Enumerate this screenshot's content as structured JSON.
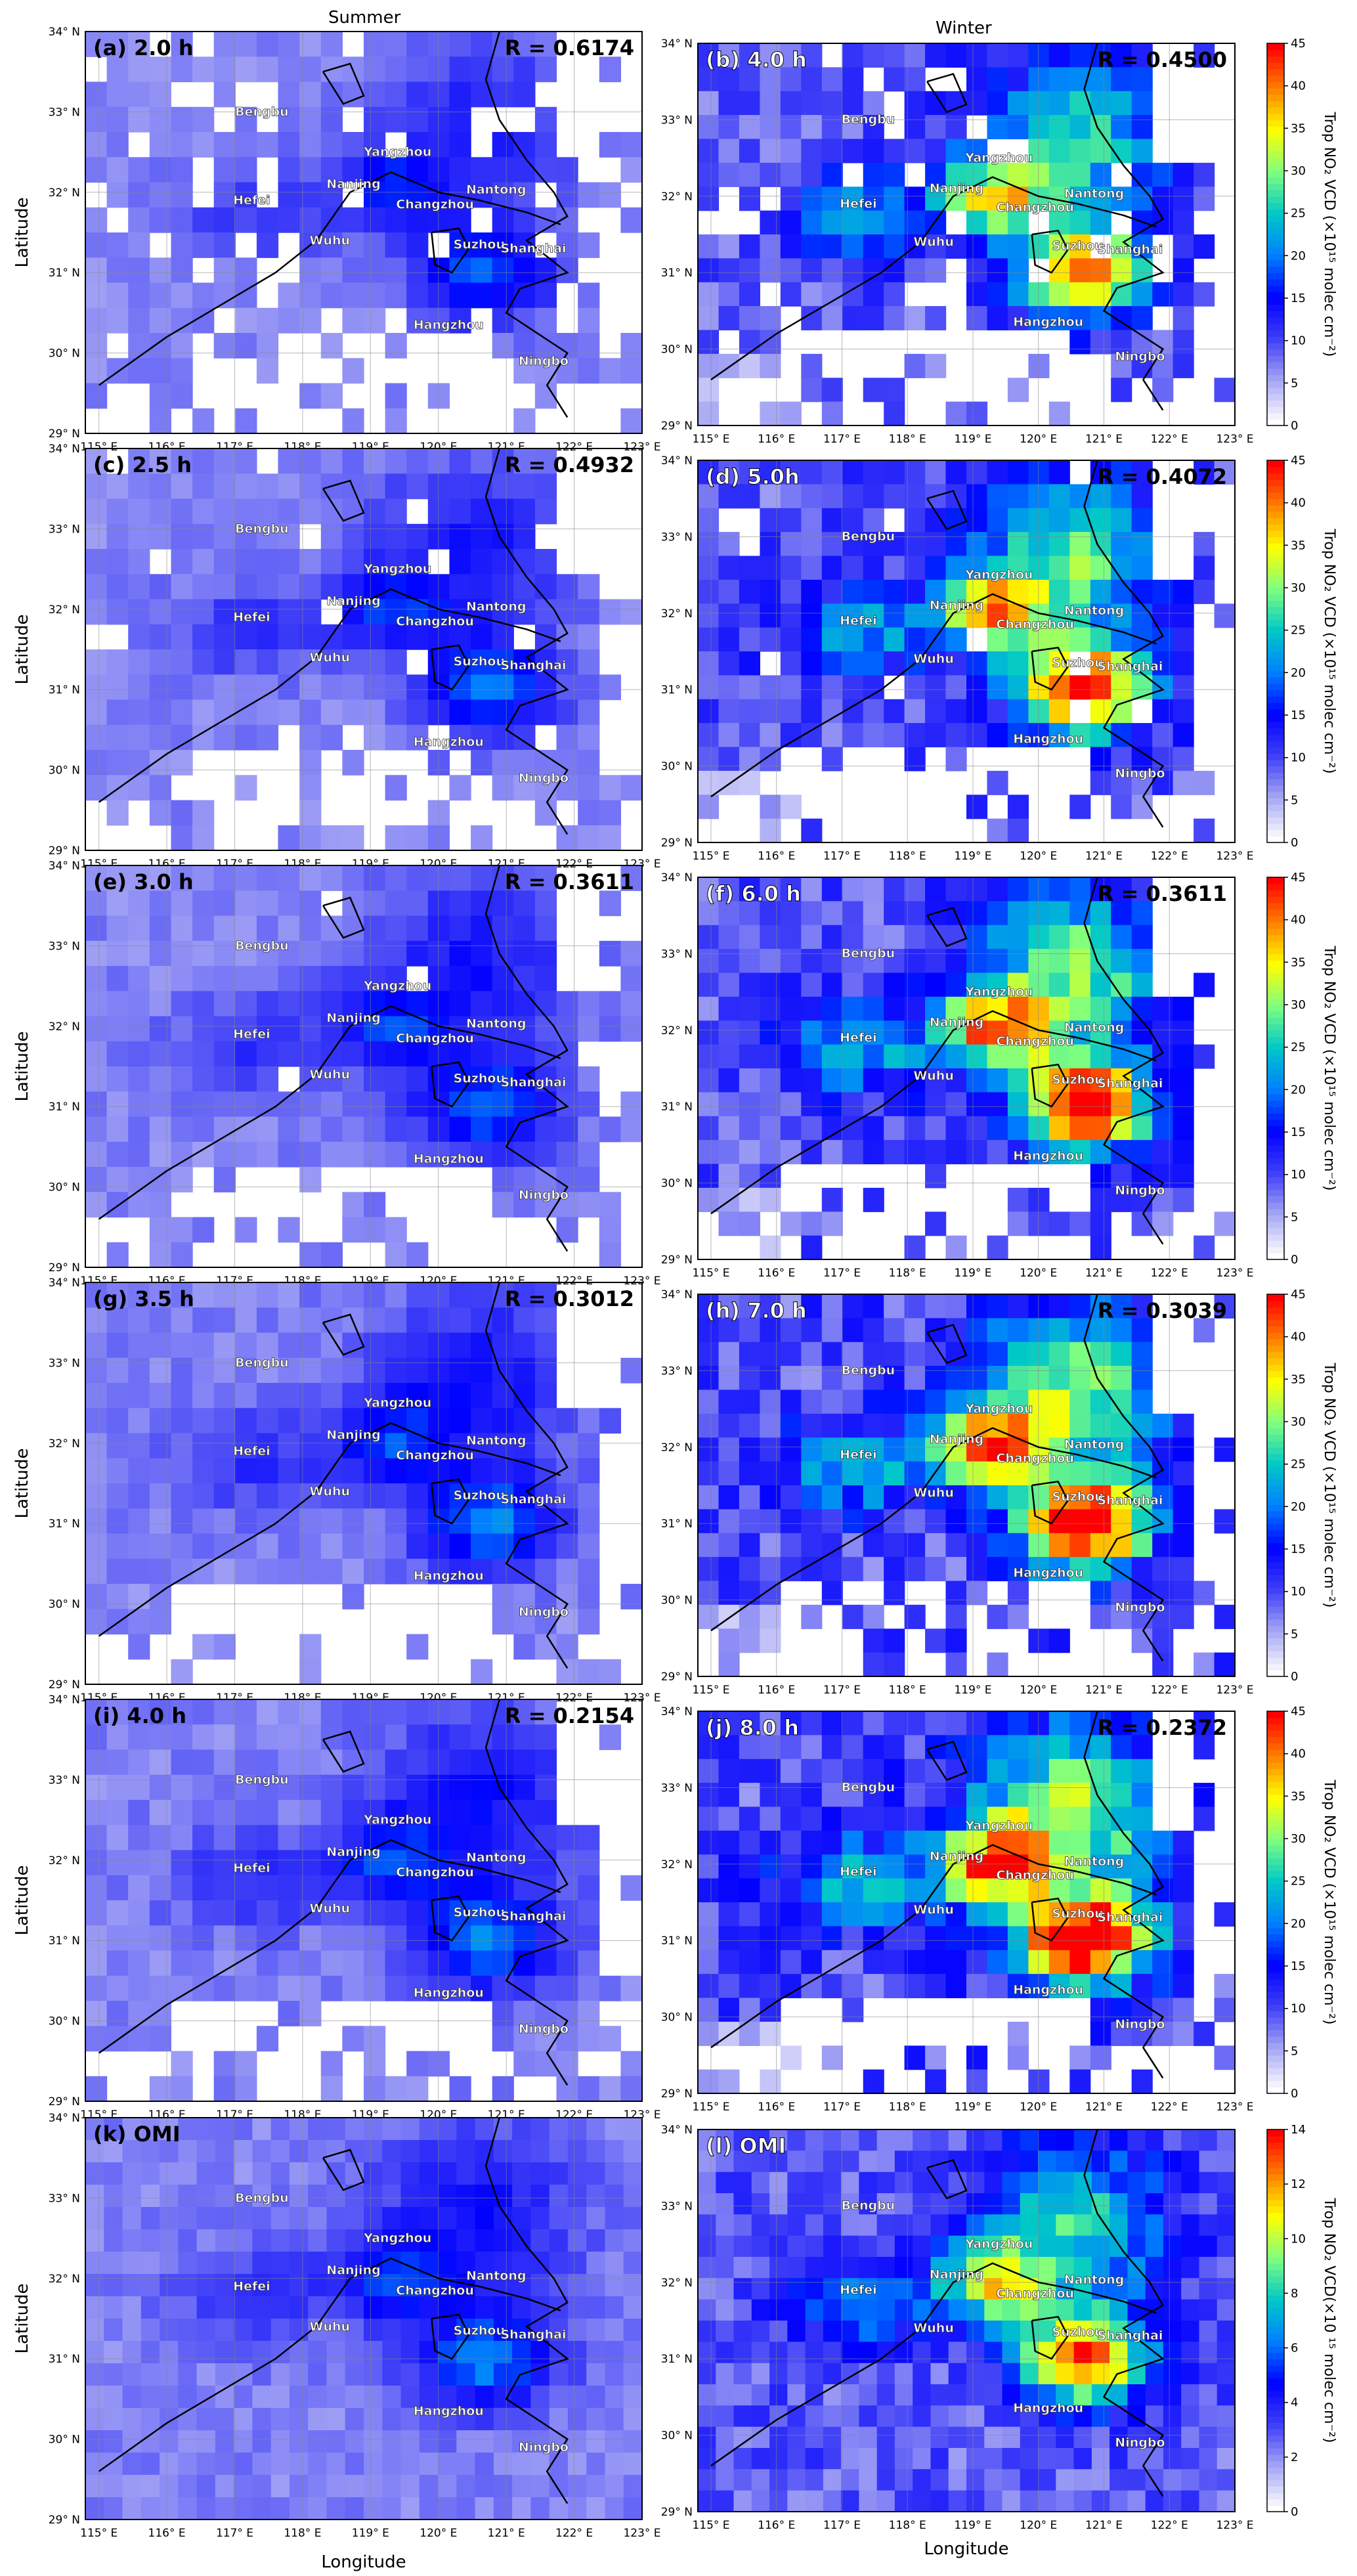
{
  "figure": {
    "column_titles": [
      "Summer",
      "Winter"
    ],
    "x_axis_label": "Longitude",
    "y_axis_label": "Latitude",
    "lon_ticks": [
      "115° E",
      "116° E",
      "117° E",
      "118° E",
      "119° E",
      "120° E",
      "121° E",
      "122° E",
      "123° E"
    ],
    "lat_ticks": [
      "29° N",
      "30° N",
      "31° N",
      "32° N",
      "33° N",
      "34° N"
    ],
    "colorbar_label": "Trop NO₂ VCD (×10¹⁵ molec cm⁻²)",
    "colorbar_label_omi": "Trop NO₂ VCD(×10 ¹⁵ molec cm⁻²)",
    "colorbar_ticks_tropomi": [
      "0",
      "5",
      "10",
      "15",
      "20",
      "25",
      "30",
      "35",
      "40",
      "45"
    ],
    "colorbar_ticks_omi": [
      "0",
      "2",
      "4",
      "6",
      "8",
      "10",
      "12",
      "14"
    ],
    "colormap": [
      "#ffffff",
      "#a7a7f5",
      "#3f3ff7",
      "#0000ff",
      "#007fff",
      "#00c8c8",
      "#7fff7f",
      "#ffff00",
      "#ff7f00",
      "#ff0000"
    ],
    "cities": [
      {
        "name": "Bengbu",
        "lon": 117.4,
        "lat": 32.95
      },
      {
        "name": "Yangzhou",
        "lon": 119.4,
        "lat": 32.45
      },
      {
        "name": "Nanjing",
        "lon": 118.75,
        "lat": 32.05
      },
      {
        "name": "Hefei",
        "lon": 117.25,
        "lat": 31.85
      },
      {
        "name": "Changzhou",
        "lon": 119.95,
        "lat": 31.8
      },
      {
        "name": "Nantong",
        "lon": 120.85,
        "lat": 31.98
      },
      {
        "name": "Wuhu",
        "lon": 118.4,
        "lat": 31.35
      },
      {
        "name": "Suzhou",
        "lon": 120.6,
        "lat": 31.3
      },
      {
        "name": "Shanghai",
        "lon": 121.4,
        "lat": 31.25
      },
      {
        "name": "Hangzhou",
        "lon": 120.15,
        "lat": 30.3
      },
      {
        "name": "Ningbo",
        "lon": 121.55,
        "lat": 29.85
      }
    ]
  },
  "chart_data": [
    {
      "type": "heatmap",
      "panel": "(a) 2.0 h",
      "season": "Summer",
      "r_label": "R = 0.6174",
      "value_scale": [
        0,
        45
      ],
      "data_intensity": 0.3,
      "coverage": 0.72,
      "xlim": [
        114.8,
        123.0
      ],
      "ylim": [
        29.0,
        34.0
      ]
    },
    {
      "type": "heatmap",
      "panel": "(b) 4.0 h",
      "season": "Winter",
      "r_label": "R = 0.4500",
      "value_scale": [
        0,
        45
      ],
      "data_intensity": 0.85,
      "coverage": 0.78,
      "xlim": [
        114.8,
        123.0
      ],
      "ylim": [
        29.0,
        34.0
      ]
    },
    {
      "type": "heatmap",
      "panel": "(c) 2.5 h",
      "season": "Summer",
      "r_label": "R = 0.4932",
      "value_scale": [
        0,
        45
      ],
      "data_intensity": 0.32,
      "coverage": 0.85,
      "xlim": [
        114.8,
        123.0
      ],
      "ylim": [
        29.0,
        34.0
      ]
    },
    {
      "type": "heatmap",
      "panel": "(d) 5.0h",
      "season": "Winter",
      "r_label": "R = 0.4072",
      "value_scale": [
        0,
        45
      ],
      "data_intensity": 0.95,
      "coverage": 0.85,
      "xlim": [
        114.8,
        123.0
      ],
      "ylim": [
        29.0,
        34.0
      ]
    },
    {
      "type": "heatmap",
      "panel": "(e) 3.0 h",
      "season": "Summer",
      "r_label": "R = 0.3611",
      "r_panel_note": "",
      "value_scale": [
        0,
        45
      ],
      "data_intensity": 0.33,
      "coverage": 0.88,
      "xlim": [
        114.8,
        123.0
      ],
      "ylim": [
        29.0,
        34.0
      ]
    },
    {
      "type": "heatmap",
      "panel": "(f) 6.0 h",
      "season": "Winter",
      "r_label": "R = 0.3611",
      "value_scale": [
        0,
        45
      ],
      "data_intensity": 1.0,
      "coverage": 0.9,
      "xlim": [
        114.8,
        123.0
      ],
      "ylim": [
        29.0,
        34.0
      ]
    },
    {
      "type": "heatmap",
      "panel": "(g) 3.5 h",
      "season": "Summer",
      "r_label": "R = 0.3012",
      "value_scale": [
        0,
        45
      ],
      "data_intensity": 0.35,
      "coverage": 0.9,
      "xlim": [
        114.8,
        123.0
      ],
      "ylim": [
        29.0,
        34.0
      ]
    },
    {
      "type": "heatmap",
      "panel": "(h) 7.0 h",
      "season": "Winter",
      "r_label": "R = 0.3039",
      "value_scale": [
        0,
        45
      ],
      "data_intensity": 1.05,
      "coverage": 0.92,
      "xlim": [
        114.8,
        123.0
      ],
      "ylim": [
        29.0,
        34.0
      ]
    },
    {
      "type": "heatmap",
      "panel": "(i) 4.0 h",
      "season": "Summer",
      "r_label": "R = 0.2154",
      "value_scale": [
        0,
        45
      ],
      "data_intensity": 0.36,
      "coverage": 0.92,
      "xlim": [
        114.8,
        123.0
      ],
      "ylim": [
        29.0,
        34.0
      ]
    },
    {
      "type": "heatmap",
      "panel": "(j) 8.0 h",
      "season": "Winter",
      "r_label": "R = 0.2372",
      "value_scale": [
        0,
        45
      ],
      "data_intensity": 1.1,
      "coverage": 0.94,
      "xlim": [
        114.8,
        123.0
      ],
      "ylim": [
        29.0,
        34.0
      ]
    },
    {
      "type": "heatmap",
      "panel": "(k) OMI",
      "season": "Summer",
      "r_label": "",
      "value_scale": [
        0,
        14
      ],
      "data_intensity": 0.35,
      "coverage": 1.0,
      "xlim": [
        114.8,
        123.0
      ],
      "ylim": [
        29.0,
        34.0
      ]
    },
    {
      "type": "heatmap",
      "panel": "(l) OMI",
      "season": "Winter",
      "r_label": "",
      "value_scale": [
        0,
        14
      ],
      "data_intensity": 0.85,
      "coverage": 1.0,
      "xlim": [
        114.8,
        123.0
      ],
      "ylim": [
        29.0,
        34.0
      ]
    }
  ]
}
